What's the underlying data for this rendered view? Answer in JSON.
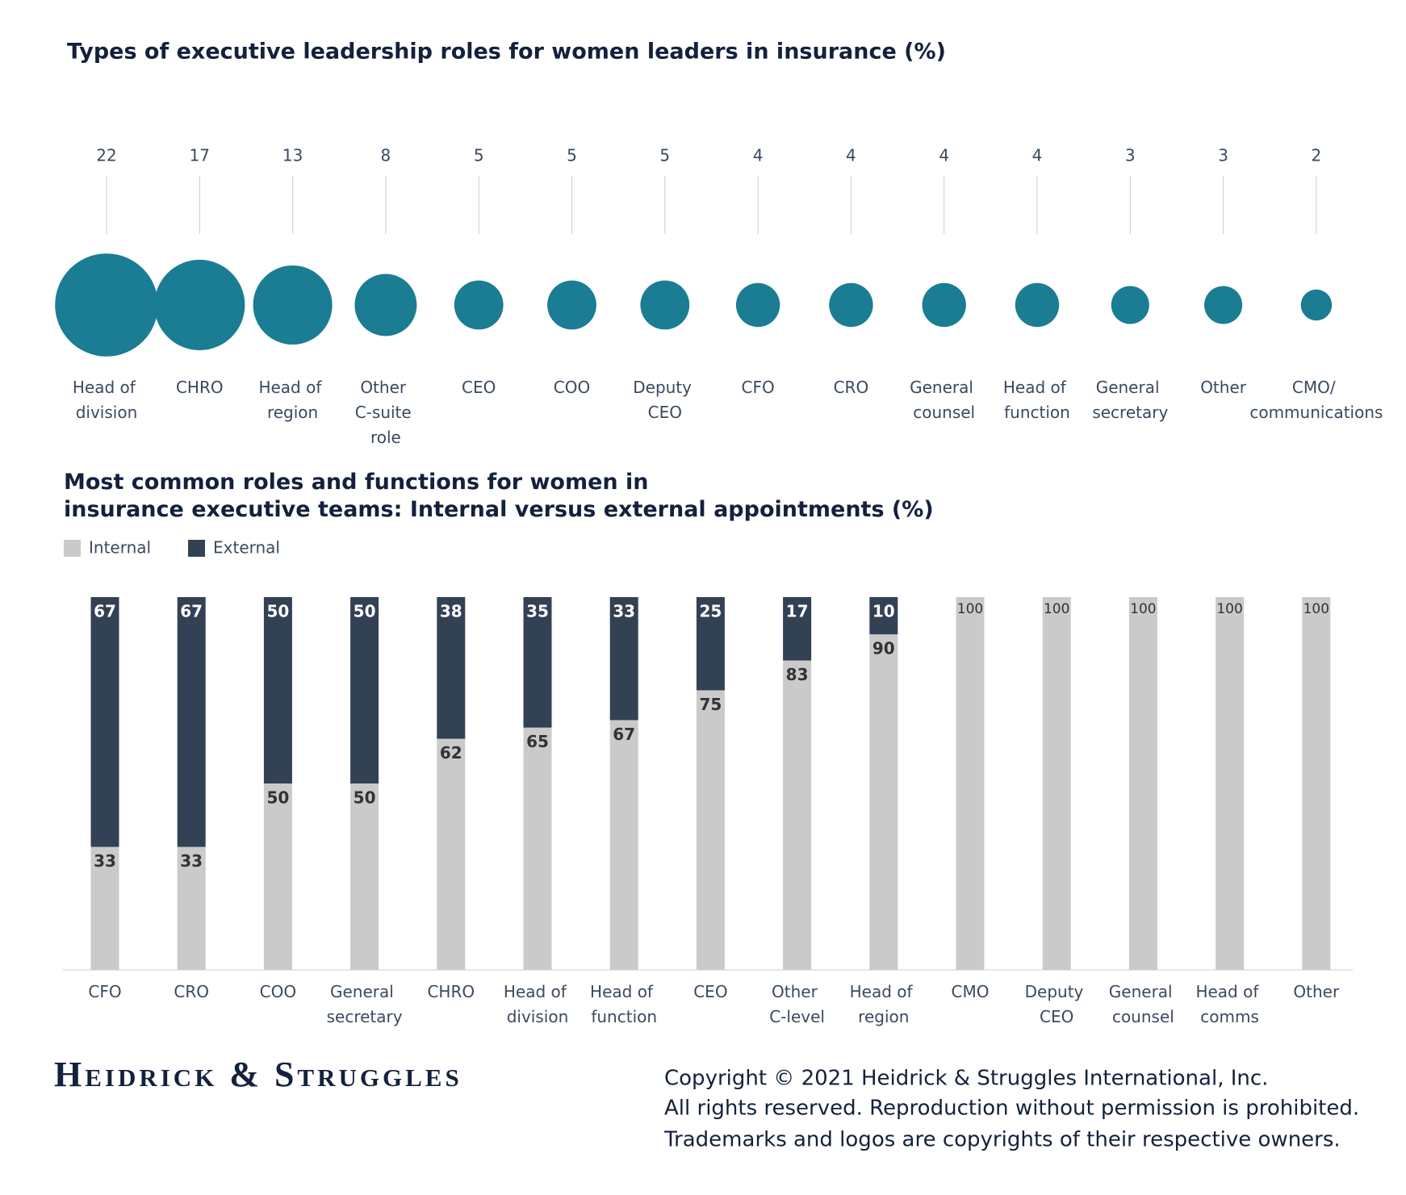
{
  "chart_data": [
    {
      "type": "bubble",
      "title": "Types of executive leadership roles for women leaders in insurance (%)",
      "categories": [
        "Head of division",
        "CHRO",
        "Head of region",
        "Other C-suite role",
        "CEO",
        "COO",
        "Deputy CEO",
        "CFO",
        "CRO",
        "General counsel",
        "Head of function",
        "General secretary",
        "Other",
        "CMO/ communications"
      ],
      "values": [
        22,
        17,
        13,
        8,
        5,
        5,
        5,
        4,
        4,
        4,
        4,
        3,
        3,
        2
      ],
      "color": "#1a7d94"
    },
    {
      "type": "stacked_bar",
      "title": "Most common roles and functions for women in insurance executive teams: Internal versus external appointments (%)",
      "categories": [
        "CFO",
        "CRO",
        "COO",
        "General secretary",
        "CHRO",
        "Head of division",
        "Head of function",
        "CEO",
        "Other C-level",
        "Head of region",
        "CMO",
        "Deputy CEO",
        "General counsel",
        "Head of comms",
        "Other"
      ],
      "series": [
        {
          "name": "Internal",
          "color": "#cacaca",
          "values": [
            33,
            33,
            50,
            50,
            62,
            65,
            67,
            75,
            83,
            90,
            100,
            100,
            100,
            100,
            100
          ]
        },
        {
          "name": "External",
          "color": "#334155",
          "values": [
            67,
            67,
            50,
            50,
            38,
            35,
            33,
            25,
            17,
            10,
            0,
            0,
            0,
            0,
            0
          ]
        }
      ],
      "ylim": [
        0,
        100
      ]
    }
  ],
  "footer": {
    "logo": "Heidrick & Struggles",
    "copyright": [
      "Copyright © 2021 Heidrick & Struggles International, Inc.",
      "All rights reserved. Reproduction without permission is prohibited.",
      "Trademarks and logos are copyrights of their respective owners."
    ]
  }
}
